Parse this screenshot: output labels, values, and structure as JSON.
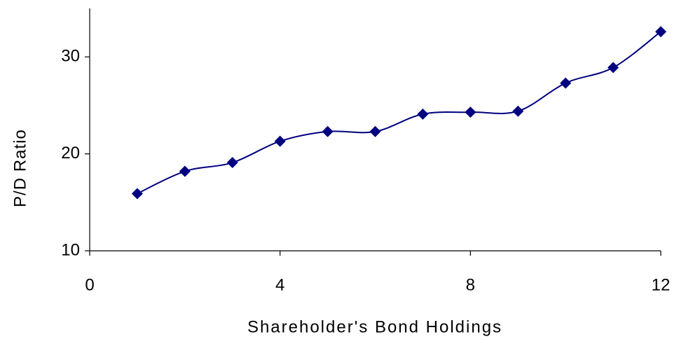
{
  "chart_data": {
    "type": "line",
    "xlabel": "Shareholder's Bond Holdings",
    "ylabel": "P/D Ratio",
    "x": [
      1,
      2,
      3,
      4,
      5,
      6,
      7,
      8,
      9,
      10,
      11,
      12
    ],
    "series": [
      {
        "color": "#000080",
        "values": [
          15.9,
          18.2,
          19.1,
          21.3,
          22.3,
          22.3,
          24.1,
          24.3,
          24.4,
          27.3,
          28.9,
          32.6
        ]
      }
    ],
    "xlim": [
      0,
      12
    ],
    "xticks": [
      0,
      4,
      8,
      12
    ],
    "ylim": [
      10,
      35
    ],
    "yticks": [
      10,
      20,
      30
    ],
    "smooth": true,
    "marker": "diamond"
  }
}
